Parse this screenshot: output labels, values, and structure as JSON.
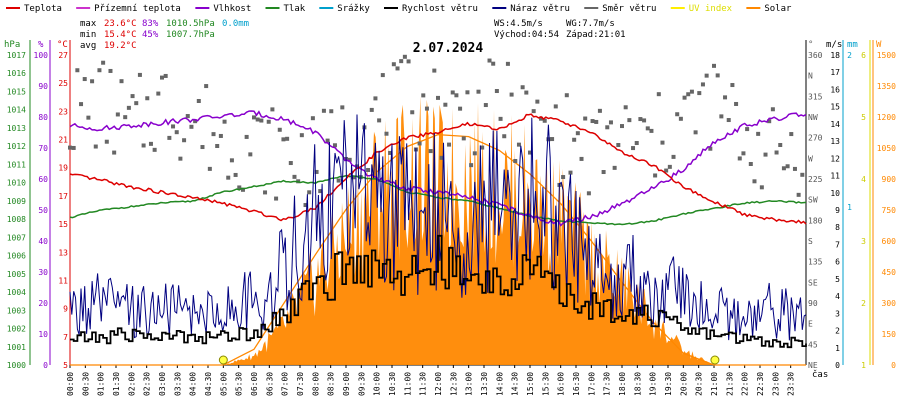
{
  "legend": [
    {
      "label": "Teplota",
      "color": "#dd0000"
    },
    {
      "label": "Přízemní teplota",
      "color": "#cc33cc"
    },
    {
      "label": "Vlhkost",
      "color": "#8800cc"
    },
    {
      "label": "Tlak",
      "color": "#228822"
    },
    {
      "label": "Srážky",
      "color": "#00a0cc"
    },
    {
      "label": "Rychlost větru",
      "color": "#000000"
    },
    {
      "label": "Náraz větru",
      "color": "#000080"
    },
    {
      "label": "Směr větru",
      "color": "#666666"
    },
    {
      "label": "UV index",
      "color": "#ffee00"
    },
    {
      "label": "Solar",
      "color": "#ff8800"
    }
  ],
  "stats": {
    "max_label": "max",
    "max_temp": "23.6°C",
    "max_hum": "83%",
    "max_press": "1010.5hPa",
    "rain": "0.0mm",
    "min_label": "min",
    "min_temp": "15.4°C",
    "min_hum": "45%",
    "min_press": "1007.7hPa",
    "avg_label": "avg",
    "avg_temp": "19.2°C"
  },
  "wind_info": {
    "ws": "WS:4.5m/s",
    "wg": "WG:7.7m/s",
    "sunrise": "Východ:04:54",
    "sunset": "Západ:21:01"
  },
  "title": "2.07.2024",
  "axis_units": {
    "hpa": "hPa",
    "pct": "%",
    "degc": "°C",
    "deg": "°",
    "ms": "m/s",
    "mm": "mm",
    "w": "W",
    "time": "čas"
  },
  "colors": {
    "temp": "#dd0000",
    "hum": "#8800cc",
    "press": "#228822",
    "wind": "#000000",
    "gust": "#000080",
    "dir": "#666666",
    "solar": "#ff8800",
    "uv": "#dddd00",
    "rain": "#00a0cc"
  },
  "chart_data": {
    "type": "line",
    "x_ticks": [
      "00:00",
      "00:30",
      "01:00",
      "01:30",
      "02:00",
      "02:30",
      "03:00",
      "03:30",
      "04:00",
      "04:30",
      "05:00",
      "05:30",
      "06:00",
      "06:30",
      "07:00",
      "07:30",
      "08:00",
      "08:30",
      "09:00",
      "09:30",
      "10:00",
      "10:30",
      "11:00",
      "11:30",
      "12:00",
      "12:30",
      "13:00",
      "13:30",
      "14:00",
      "14:30",
      "15:00",
      "15:30",
      "16:00",
      "16:30",
      "17:00",
      "17:30",
      "18:00",
      "18:30",
      "19:00",
      "19:30",
      "20:00",
      "20:30",
      "21:00",
      "21:30",
      "22:00",
      "22:30",
      "23:00",
      "23:30"
    ],
    "hpa_ticks": [
      "1017",
      "1016",
      "1015",
      "1014",
      "1013",
      "1012",
      "1011",
      "1010",
      "1009",
      "1008",
      "1007",
      "1006",
      "1005",
      "1004",
      "1003",
      "1002",
      "1001",
      "1000"
    ],
    "pct_ticks": [
      "100",
      "90",
      "80",
      "70",
      "60",
      "50",
      "40",
      "30",
      "20",
      "10",
      "0"
    ],
    "degc_ticks": [
      "27",
      "25",
      "23",
      "21",
      "19",
      "17",
      "15",
      "13",
      "11",
      "9",
      "7",
      "5"
    ],
    "dir_ticks": [
      "360",
      "N",
      "315",
      "NW",
      "270",
      "W",
      "225",
      "SW",
      "180",
      "S",
      "135",
      "SE",
      "90",
      "E",
      "45",
      "NE"
    ],
    "ms_ticks": [
      "18",
      "17",
      "16",
      "15",
      "14",
      "13",
      "12",
      "11",
      "10",
      "9",
      "8",
      "7",
      "6",
      "5",
      "4",
      "3",
      "2",
      "1",
      "0"
    ],
    "mm_ticks": [
      "2",
      "1"
    ],
    "uv_ticks": [
      "6",
      "5",
      "4",
      "3",
      "2",
      "1"
    ],
    "w_ticks": [
      "1500",
      "1350",
      "1200",
      "1050",
      "900",
      "750",
      "600",
      "450",
      "300",
      "150",
      "0"
    ],
    "ranges": {
      "temp": [
        5,
        28
      ],
      "hum": [
        0,
        100
      ],
      "press": [
        1000,
        1017.3
      ],
      "wind": [
        0,
        18.2
      ],
      "dir": [
        0,
        360
      ],
      "solar": [
        0,
        1600
      ]
    },
    "hours": [
      0,
      1,
      2,
      3,
      4,
      5,
      6,
      7,
      8,
      9,
      10,
      11,
      12,
      13,
      14,
      15,
      16,
      17,
      18,
      19,
      20,
      21,
      22,
      23,
      24
    ],
    "temp": [
      18.9,
      18.5,
      18.0,
      17.6,
      17.2,
      16.8,
      16.2,
      15.6,
      16.5,
      18.6,
      20.5,
      21.6,
      22.0,
      22.6,
      22.2,
      23.3,
      22.8,
      22.0,
      20.5,
      19.6,
      18.0,
      16.9,
      16.0,
      15.6,
      15.4
    ],
    "hum": [
      76,
      75,
      76,
      77,
      78,
      79,
      80,
      78,
      74,
      65,
      59,
      56,
      55,
      53,
      51,
      47,
      45,
      47,
      51,
      56,
      62,
      71,
      76,
      78,
      80
    ],
    "press": [
      1008.1,
      1008.5,
      1008.7,
      1008.9,
      1009.0,
      1009.5,
      1009.8,
      1010.1,
      1010.0,
      1010.4,
      1010.2,
      1009.5,
      1009.2,
      1009.0,
      1008.6,
      1008.2,
      1007.9,
      1007.8,
      1007.7,
      1007.9,
      1008.3,
      1008.6,
      1008.9,
      1009.0,
      1008.9
    ],
    "wind": [
      1.5,
      1.6,
      1.8,
      1.6,
      1.7,
      1.6,
      2.0,
      3.0,
      4.5,
      5.5,
      6.0,
      5.0,
      6.0,
      4.6,
      5.0,
      5.5,
      4.0,
      3.4,
      3.2,
      2.8,
      2.0,
      1.8,
      1.5,
      1.3,
      1.4
    ],
    "gust": [
      3.0,
      3.5,
      3.0,
      3.2,
      3.0,
      3.2,
      3.6,
      5.5,
      8.5,
      10.0,
      9.5,
      8.5,
      9.0,
      8.0,
      9.0,
      10.5,
      8.0,
      5.5,
      5.0,
      5.0,
      3.6,
      3.0,
      2.6,
      3.2,
      2.5
    ],
    "solar": [
      0,
      0,
      0,
      0,
      0,
      0,
      60,
      260,
      560,
      850,
      1150,
      1230,
      1180,
      1210,
      1150,
      1100,
      950,
      700,
      520,
      300,
      90,
      0,
      0,
      0,
      0
    ],
    "sun_clear": [
      0,
      0,
      0,
      0,
      0,
      0,
      80,
      320,
      560,
      790,
      980,
      1110,
      1170,
      1160,
      1090,
      970,
      820,
      630,
      420,
      220,
      60,
      0,
      0,
      0,
      0
    ],
    "dir": [
      290,
      300,
      270,
      300,
      280,
      260,
      250,
      240,
      230,
      260,
      280,
      300,
      290,
      280,
      300,
      270,
      260,
      240,
      260,
      250,
      280,
      300,
      260,
      240,
      250
    ],
    "uv_markers": [
      5.0,
      21.03
    ]
  }
}
